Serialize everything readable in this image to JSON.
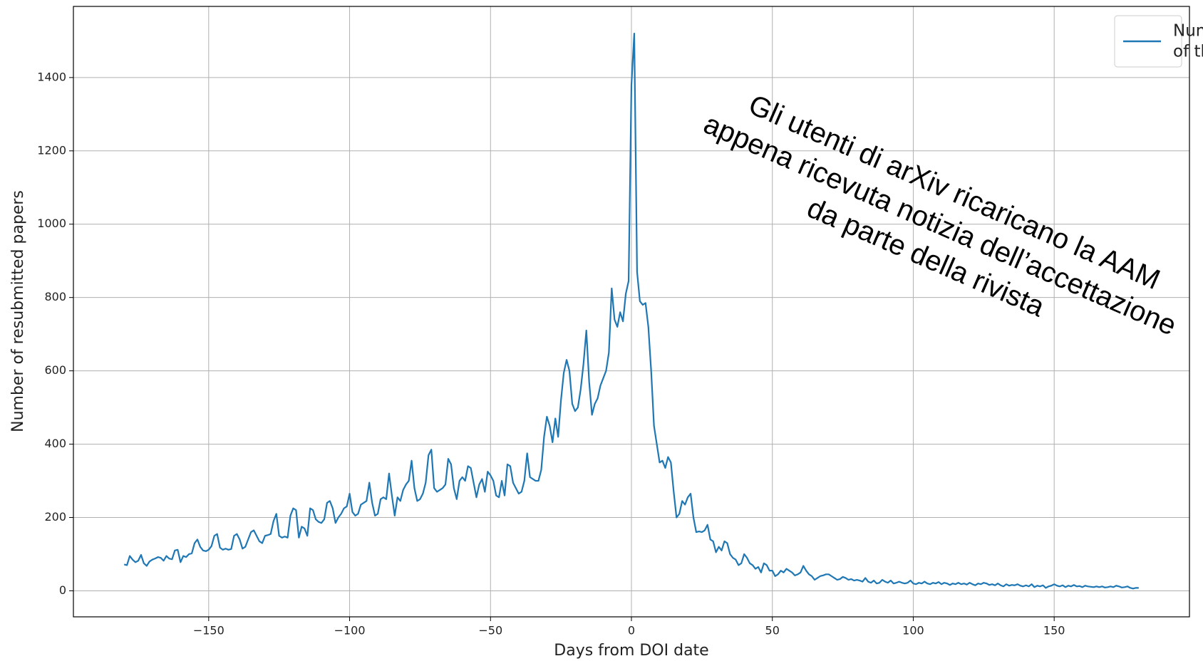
{
  "chart_data": {
    "type": "line",
    "xlabel": "Days from DOI date",
    "ylabel": "Number of resubmitted papers",
    "annotation": [
      "Gli utenti di arXiv ricaricano la AAM",
      "appena ricevuta notizia dell’accettazione",
      "da parte della rivista"
    ],
    "legend": "upper right",
    "grid": true,
    "xlim": [
      -198,
      198
    ],
    "ylim": [
      -71,
      1594
    ],
    "xticks": [
      {
        "value": -150,
        "label": "−150"
      },
      {
        "value": -100,
        "label": "−100"
      },
      {
        "value": -50,
        "label": "−50"
      },
      0,
      50,
      100,
      150
    ],
    "yticks": [
      0,
      200,
      400,
      600,
      800,
      1000,
      1200,
      1400
    ],
    "x": [
      -180,
      -179,
      -178,
      -177,
      -176,
      -175,
      -174,
      -173,
      -172,
      -171,
      -170,
      -169,
      -168,
      -167,
      -166,
      -165,
      -164,
      -163,
      -162,
      -161,
      -160,
      -159,
      -158,
      -157,
      -156,
      -155,
      -154,
      -153,
      -152,
      -151,
      -150,
      -149,
      -148,
      -147,
      -146,
      -145,
      -144,
      -143,
      -142,
      -141,
      -140,
      -139,
      -138,
      -137,
      -136,
      -135,
      -134,
      -133,
      -132,
      -131,
      -130,
      -129,
      -128,
      -127,
      -126,
      -125,
      -124,
      -123,
      -122,
      -121,
      -120,
      -119,
      -118,
      -117,
      -116,
      -115,
      -114,
      -113,
      -112,
      -111,
      -110,
      -109,
      -108,
      -107,
      -106,
      -105,
      -104,
      -103,
      -102,
      -101,
      -100,
      -99,
      -98,
      -97,
      -96,
      -95,
      -94,
      -93,
      -92,
      -91,
      -90,
      -89,
      -88,
      -87,
      -86,
      -85,
      -84,
      -83,
      -82,
      -81,
      -80,
      -79,
      -78,
      -77,
      -76,
      -75,
      -74,
      -73,
      -72,
      -71,
      -70,
      -69,
      -68,
      -67,
      -66,
      -65,
      -64,
      -63,
      -62,
      -61,
      -60,
      -59,
      -58,
      -57,
      -56,
      -55,
      -54,
      -53,
      -52,
      -51,
      -50,
      -49,
      -48,
      -47,
      -46,
      -45,
      -44,
      -43,
      -42,
      -41,
      -40,
      -39,
      -38,
      -37,
      -36,
      -35,
      -34,
      -33,
      -32,
      -31,
      -30,
      -29,
      -28,
      -27,
      -26,
      -25,
      -24,
      -23,
      -22,
      -21,
      -20,
      -19,
      -18,
      -17,
      -16,
      -15,
      -14,
      -13,
      -12,
      -11,
      -10,
      -9,
      -8,
      -7,
      -6,
      -5,
      -4,
      -3,
      -2,
      -1,
      0,
      1,
      2,
      3,
      4,
      5,
      6,
      7,
      8,
      9,
      10,
      11,
      12,
      13,
      14,
      15,
      16,
      17,
      18,
      19,
      20,
      21,
      22,
      23,
      24,
      25,
      26,
      27,
      28,
      29,
      30,
      31,
      32,
      33,
      34,
      35,
      36,
      37,
      38,
      39,
      40,
      41,
      42,
      43,
      44,
      45,
      46,
      47,
      48,
      49,
      50,
      51,
      52,
      53,
      54,
      55,
      56,
      57,
      58,
      59,
      60,
      61,
      62,
      63,
      64,
      65,
      66,
      67,
      68,
      69,
      70,
      71,
      72,
      73,
      74,
      75,
      76,
      77,
      78,
      79,
      80,
      81,
      82,
      83,
      84,
      85,
      86,
      87,
      88,
      89,
      90,
      91,
      92,
      93,
      94,
      95,
      96,
      97,
      98,
      99,
      100,
      101,
      102,
      103,
      104,
      105,
      106,
      107,
      108,
      109,
      110,
      111,
      112,
      113,
      114,
      115,
      116,
      117,
      118,
      119,
      120,
      121,
      122,
      123,
      124,
      125,
      126,
      127,
      128,
      129,
      130,
      131,
      132,
      133,
      134,
      135,
      136,
      137,
      138,
      139,
      140,
      141,
      142,
      143,
      144,
      145,
      146,
      147,
      148,
      149,
      150,
      151,
      152,
      153,
      154,
      155,
      156,
      157,
      158,
      159,
      160,
      161,
      162,
      163,
      164,
      165,
      166,
      167,
      168,
      169,
      170,
      171,
      172,
      173,
      174,
      175,
      176,
      177,
      178,
      179,
      180
    ],
    "series": [
      {
        "name": "Number of resubmitted papers of the five major journals in HEP",
        "color": "#1f77b4",
        "values": [
          72,
          70,
          95,
          85,
          78,
          82,
          98,
          75,
          68,
          80,
          85,
          88,
          92,
          90,
          82,
          95,
          88,
          86,
          110,
          112,
          78,
          95,
          92,
          100,
          102,
          130,
          140,
          120,
          110,
          108,
          112,
          122,
          150,
          155,
          118,
          112,
          115,
          112,
          114,
          150,
          155,
          140,
          115,
          120,
          140,
          160,
          165,
          150,
          135,
          130,
          150,
          152,
          155,
          190,
          210,
          150,
          145,
          148,
          145,
          205,
          225,
          220,
          145,
          175,
          170,
          150,
          225,
          220,
          195,
          188,
          185,
          195,
          240,
          245,
          225,
          185,
          200,
          210,
          225,
          230,
          265,
          215,
          205,
          210,
          235,
          240,
          245,
          295,
          240,
          205,
          210,
          250,
          255,
          250,
          320,
          260,
          205,
          255,
          245,
          275,
          290,
          300,
          355,
          280,
          245,
          250,
          265,
          295,
          370,
          385,
          280,
          270,
          275,
          280,
          290,
          360,
          345,
          280,
          250,
          300,
          310,
          300,
          340,
          335,
          295,
          255,
          290,
          305,
          270,
          325,
          315,
          300,
          260,
          255,
          300,
          260,
          345,
          340,
          295,
          280,
          265,
          270,
          300,
          375,
          310,
          305,
          300,
          300,
          330,
          420,
          475,
          450,
          405,
          470,
          420,
          520,
          595,
          630,
          600,
          510,
          490,
          500,
          550,
          620,
          710,
          570,
          480,
          510,
          525,
          560,
          580,
          600,
          650,
          825,
          740,
          720,
          760,
          735,
          810,
          845,
          1380,
          1520,
          870,
          790,
          780,
          785,
          720,
          600,
          450,
          400,
          350,
          355,
          335,
          365,
          350,
          270,
          200,
          210,
          245,
          235,
          255,
          265,
          200,
          160,
          162,
          160,
          165,
          180,
          140,
          135,
          105,
          120,
          110,
          135,
          130,
          100,
          90,
          85,
          70,
          75,
          100,
          90,
          75,
          70,
          60,
          65,
          50,
          75,
          70,
          55,
          55,
          40,
          45,
          55,
          50,
          60,
          55,
          50,
          42,
          45,
          50,
          68,
          55,
          45,
          40,
          30,
          35,
          40,
          42,
          45,
          45,
          40,
          35,
          30,
          32,
          38,
          35,
          30,
          32,
          28,
          30,
          28,
          25,
          35,
          25,
          22,
          28,
          20,
          22,
          30,
          25,
          22,
          28,
          20,
          22,
          25,
          22,
          20,
          22,
          28,
          20,
          18,
          22,
          20,
          25,
          20,
          18,
          22,
          20,
          24,
          18,
          22,
          20,
          16,
          20,
          18,
          22,
          18,
          20,
          17,
          22,
          18,
          15,
          20,
          18,
          22,
          20,
          16,
          18,
          15,
          20,
          15,
          12,
          18,
          14,
          16,
          15,
          18,
          14,
          12,
          15,
          12,
          18,
          10,
          14,
          12,
          15,
          8,
          12,
          14,
          18,
          14,
          12,
          15,
          10,
          14,
          12,
          16,
          12,
          13,
          10,
          14,
          12,
          11,
          10,
          12,
          10,
          12,
          9,
          10,
          12,
          10,
          14,
          12,
          9,
          10,
          12,
          8,
          6,
          8,
          8
        ]
      }
    ]
  }
}
